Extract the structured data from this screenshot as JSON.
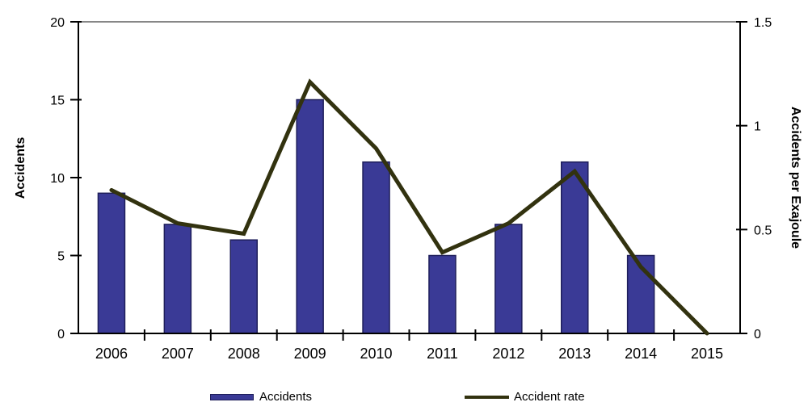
{
  "chart_data": {
    "type": "combo",
    "categories": [
      "2006",
      "2007",
      "2008",
      "2009",
      "2010",
      "2011",
      "2012",
      "2013",
      "2014",
      "2015"
    ],
    "series": [
      {
        "name": "Accidents",
        "type": "bar",
        "axis": "left",
        "color": "#3a3a96",
        "border_color": "#1e1e5a",
        "values": [
          9,
          7,
          6,
          15,
          11,
          5,
          7,
          11,
          5,
          0
        ]
      },
      {
        "name": "Accident rate",
        "type": "line",
        "axis": "right",
        "color": "#32320f",
        "values": [
          0.69,
          0.53,
          0.48,
          1.21,
          0.89,
          0.39,
          0.53,
          0.78,
          0.32,
          0
        ]
      }
    ],
    "left_axis": {
      "label": "Accidents",
      "min": 0,
      "max": 20,
      "tick_values": [
        0,
        5,
        10,
        15,
        20
      ],
      "tick_labels": [
        "0",
        "5",
        "10",
        "15",
        "20"
      ]
    },
    "right_axis": {
      "label": "Accidents per Exajoule",
      "min": 0,
      "max": 1.5,
      "tick_values": [
        0,
        0.5,
        1,
        1.5
      ],
      "tick_labels": [
        "0",
        "0.5",
        "1",
        "1.5"
      ]
    },
    "grid": false,
    "legend_position": "bottom",
    "colors": {
      "axis": "#000000",
      "top_border": "#878787",
      "background": "#ffffff",
      "text": "#000000"
    }
  }
}
